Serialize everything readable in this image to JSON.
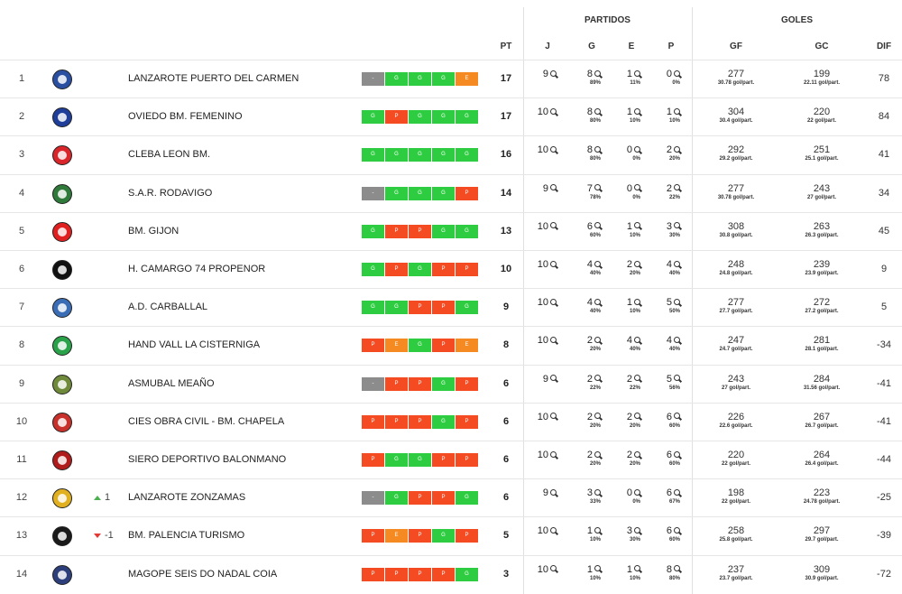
{
  "header": {
    "partidos": "PARTIDOS",
    "goles": "GOLES",
    "pt": "PT",
    "j": "J",
    "g": "G",
    "e": "E",
    "p": "P",
    "gf": "GF",
    "gc": "GC",
    "dif": "DIF"
  },
  "icons": {
    "stat": "magnifier-icon",
    "up": "arrow-up-icon",
    "down": "arrow-down-icon"
  },
  "colors": {
    "G": "#2ecc40",
    "P": "#f44b22",
    "E": "#f58a23",
    "-": "#8c8c8c",
    "up": "#4caf50",
    "down": "#e53935"
  },
  "rows": [
    {
      "pos": "1",
      "trend": "",
      "trend_dir": "",
      "name": "LANZAROTE PUERTO DEL CARMEN",
      "form": [
        "-",
        "G",
        "G",
        "G",
        "E"
      ],
      "pt": "17",
      "j": "9",
      "g": "8",
      "gp": "89%",
      "e": "1",
      "ep": "11%",
      "p": "0",
      "pp": "0%",
      "gf": "277",
      "gfs": "30.78 gol/part.",
      "gc": "199",
      "gcs": "22.11 gol/part.",
      "dif": "78",
      "logo": "#2a4fa0"
    },
    {
      "pos": "2",
      "trend": "",
      "trend_dir": "",
      "name": "OVIEDO BM. FEMENINO",
      "form": [
        "G",
        "P",
        "G",
        "G",
        "G"
      ],
      "pt": "17",
      "j": "10",
      "g": "8",
      "gp": "80%",
      "e": "1",
      "ep": "10%",
      "p": "1",
      "pp": "10%",
      "gf": "304",
      "gfs": "30.4 gol/part.",
      "gc": "220",
      "gcs": "22 gol/part.",
      "dif": "84",
      "logo": "#1f3e9a"
    },
    {
      "pos": "3",
      "trend": "",
      "trend_dir": "",
      "name": "CLEBA LEON BM.",
      "form": [
        "G",
        "G",
        "G",
        "G",
        "G"
      ],
      "pt": "16",
      "j": "10",
      "g": "8",
      "gp": "80%",
      "e": "0",
      "ep": "0%",
      "p": "2",
      "pp": "20%",
      "gf": "292",
      "gfs": "29.2 gol/part.",
      "gc": "251",
      "gcs": "25.1 gol/part.",
      "dif": "41",
      "logo": "#d8262b"
    },
    {
      "pos": "4",
      "trend": "",
      "trend_dir": "",
      "name": "S.A.R. RODAVIGO",
      "form": [
        "-",
        "G",
        "G",
        "G",
        "P"
      ],
      "pt": "14",
      "j": "9",
      "g": "7",
      "gp": "78%",
      "e": "0",
      "ep": "0%",
      "p": "2",
      "pp": "22%",
      "gf": "277",
      "gfs": "30.78 gol/part.",
      "gc": "243",
      "gcs": "27 gol/part.",
      "dif": "34",
      "logo": "#2f7a3a"
    },
    {
      "pos": "5",
      "trend": "",
      "trend_dir": "",
      "name": "BM. GIJON",
      "form": [
        "G",
        "P",
        "P",
        "G",
        "G"
      ],
      "pt": "13",
      "j": "10",
      "g": "6",
      "gp": "60%",
      "e": "1",
      "ep": "10%",
      "p": "3",
      "pp": "30%",
      "gf": "308",
      "gfs": "30.8 gol/part.",
      "gc": "263",
      "gcs": "26.3 gol/part.",
      "dif": "45",
      "logo": "#e02020"
    },
    {
      "pos": "6",
      "trend": "",
      "trend_dir": "",
      "name": "H. CAMARGO 74 PROPENOR",
      "form": [
        "G",
        "P",
        "G",
        "P",
        "P"
      ],
      "pt": "10",
      "j": "10",
      "g": "4",
      "gp": "40%",
      "e": "2",
      "ep": "20%",
      "p": "4",
      "pp": "40%",
      "gf": "248",
      "gfs": "24.8 gol/part.",
      "gc": "239",
      "gcs": "23.9 gol/part.",
      "dif": "9",
      "logo": "#111111"
    },
    {
      "pos": "7",
      "trend": "",
      "trend_dir": "",
      "name": "A.D. CARBALLAL",
      "form": [
        "G",
        "G",
        "P",
        "P",
        "G"
      ],
      "pt": "9",
      "j": "10",
      "g": "4",
      "gp": "40%",
      "e": "1",
      "ep": "10%",
      "p": "5",
      "pp": "50%",
      "gf": "277",
      "gfs": "27.7 gol/part.",
      "gc": "272",
      "gcs": "27.2 gol/part.",
      "dif": "5",
      "logo": "#3a6db5"
    },
    {
      "pos": "8",
      "trend": "",
      "trend_dir": "",
      "name": "HAND VALL LA CISTERNIGA",
      "form": [
        "P",
        "E",
        "G",
        "P",
        "E"
      ],
      "pt": "8",
      "j": "10",
      "g": "2",
      "gp": "20%",
      "e": "4",
      "ep": "40%",
      "p": "4",
      "pp": "40%",
      "gf": "247",
      "gfs": "24.7 gol/part.",
      "gc": "281",
      "gcs": "28.1 gol/part.",
      "dif": "-34",
      "logo": "#2aa24a"
    },
    {
      "pos": "9",
      "trend": "",
      "trend_dir": "",
      "name": "ASMUBAL MEAÑO",
      "form": [
        "-",
        "P",
        "P",
        "G",
        "P"
      ],
      "pt": "6",
      "j": "9",
      "g": "2",
      "gp": "22%",
      "e": "2",
      "ep": "22%",
      "p": "5",
      "pp": "56%",
      "gf": "243",
      "gfs": "27 gol/part.",
      "gc": "284",
      "gcs": "31.56 gol/part.",
      "dif": "-41",
      "logo": "#6f8a3a"
    },
    {
      "pos": "10",
      "trend": "",
      "trend_dir": "",
      "name": "CIES OBRA CIVIL - BM. CHAPELA",
      "form": [
        "P",
        "P",
        "P",
        "G",
        "P"
      ],
      "pt": "6",
      "j": "10",
      "g": "2",
      "gp": "20%",
      "e": "2",
      "ep": "20%",
      "p": "6",
      "pp": "60%",
      "gf": "226",
      "gfs": "22.6 gol/part.",
      "gc": "267",
      "gcs": "26.7 gol/part.",
      "dif": "-41",
      "logo": "#c8302b"
    },
    {
      "pos": "11",
      "trend": "",
      "trend_dir": "",
      "name": "SIERO DEPORTIVO BALONMANO",
      "form": [
        "P",
        "G",
        "G",
        "P",
        "P"
      ],
      "pt": "6",
      "j": "10",
      "g": "2",
      "gp": "20%",
      "e": "2",
      "ep": "20%",
      "p": "6",
      "pp": "60%",
      "gf": "220",
      "gfs": "22 gol/part.",
      "gc": "264",
      "gcs": "26.4 gol/part.",
      "dif": "-44",
      "logo": "#b01c1c"
    },
    {
      "pos": "12",
      "trend": "1",
      "trend_dir": "up",
      "name": "LANZAROTE ZONZAMAS",
      "form": [
        "-",
        "G",
        "P",
        "P",
        "G"
      ],
      "pt": "6",
      "j": "9",
      "g": "3",
      "gp": "33%",
      "e": "0",
      "ep": "0%",
      "p": "6",
      "pp": "67%",
      "gf": "198",
      "gfs": "22 gol/part.",
      "gc": "223",
      "gcs": "24.78 gol/part.",
      "dif": "-25",
      "logo": "#e0b020"
    },
    {
      "pos": "13",
      "trend": "-1",
      "trend_dir": "down",
      "name": "BM. PALENCIA TURISMO",
      "form": [
        "P",
        "E",
        "P",
        "G",
        "P"
      ],
      "pt": "5",
      "j": "10",
      "g": "1",
      "gp": "10%",
      "e": "3",
      "ep": "30%",
      "p": "6",
      "pp": "60%",
      "gf": "258",
      "gfs": "25.8 gol/part.",
      "gc": "297",
      "gcs": "29.7 gol/part.",
      "dif": "-39",
      "logo": "#1a1a1a"
    },
    {
      "pos": "14",
      "trend": "",
      "trend_dir": "",
      "name": "MAGOPE SEIS DO NADAL COIA",
      "form": [
        "P",
        "P",
        "P",
        "P",
        "G"
      ],
      "pt": "3",
      "j": "10",
      "g": "1",
      "gp": "10%",
      "e": "1",
      "ep": "10%",
      "p": "8",
      "pp": "80%",
      "gf": "237",
      "gfs": "23.7 gol/part.",
      "gc": "309",
      "gcs": "30.9 gol/part.",
      "dif": "-72",
      "logo": "#2d3f7a"
    }
  ]
}
